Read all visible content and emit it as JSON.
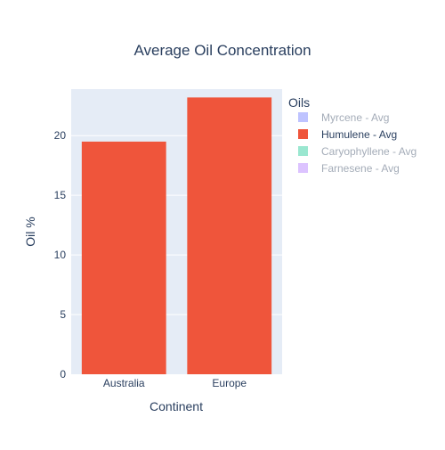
{
  "chart_data": {
    "type": "bar",
    "title": "Average Oil Concentration",
    "xlabel": "Continent",
    "ylabel": "Oil %",
    "categories": [
      "Australia",
      "Europe"
    ],
    "ylim": [
      0,
      23.9
    ],
    "yticks": [
      0,
      5,
      10,
      15,
      20
    ],
    "grid": true,
    "legend": {
      "title": "Oils",
      "placement": "top-right"
    },
    "series": [
      {
        "name": "Myrcene - Avg",
        "color": "#b3b8ff",
        "visible": false,
        "values": [
          null,
          null
        ]
      },
      {
        "name": "Humulene - Avg",
        "color": "#ef553b",
        "visible": true,
        "values": [
          19.5,
          23.2
        ]
      },
      {
        "name": "Caryophyllene - Avg",
        "color": "#88e3c8",
        "visible": false,
        "values": [
          null,
          null
        ]
      },
      {
        "name": "Farnesene - Avg",
        "color": "#d6b8ff",
        "visible": false,
        "values": [
          null,
          null
        ]
      }
    ]
  }
}
